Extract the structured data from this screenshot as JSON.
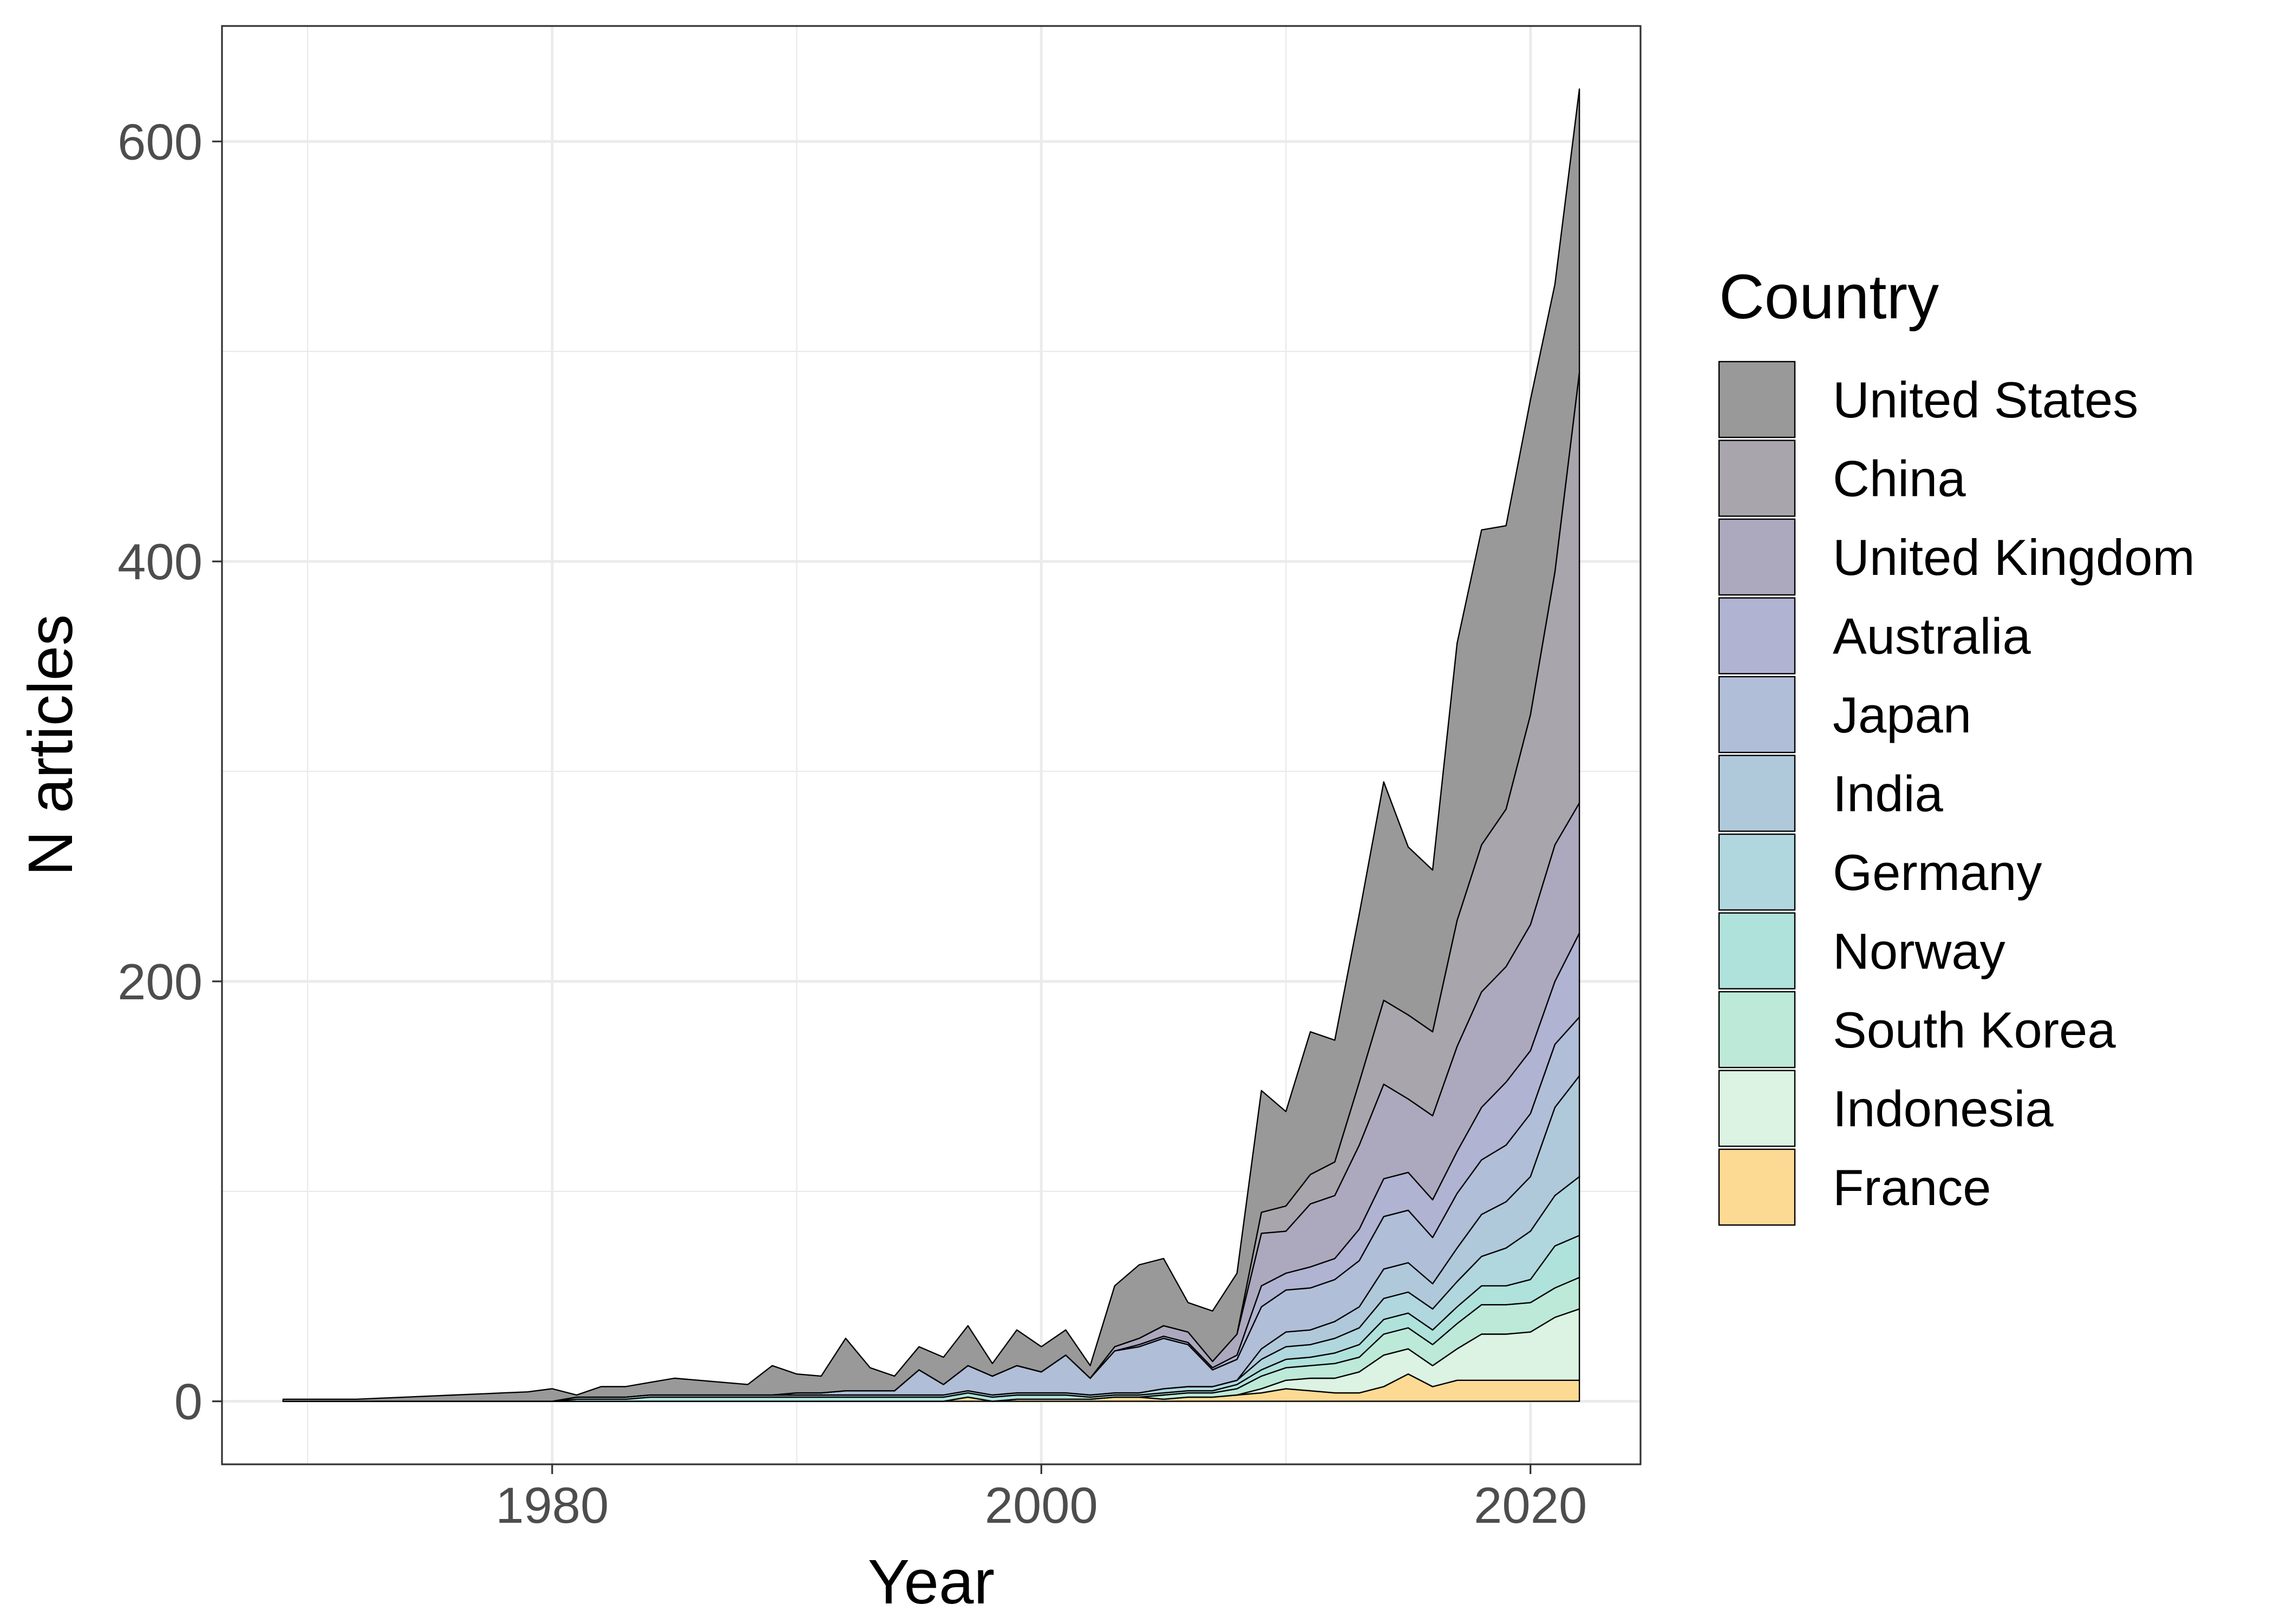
{
  "chart_data": {
    "type": "area",
    "stacked": true,
    "xlabel": "Year",
    "ylabel": "N articles",
    "xlim": [
      1966.5,
      2024.5
    ],
    "ylim": [
      -30,
      655
    ],
    "x_ticks": [
      1980,
      2000,
      2020
    ],
    "y_ticks": [
      0,
      200,
      400,
      600
    ],
    "grid": true,
    "legend": {
      "title": "Country",
      "placement": "right"
    },
    "x": [
      1969,
      1970,
      1971,
      1972,
      1973,
      1974,
      1975,
      1976,
      1977,
      1978,
      1979,
      1980,
      1981,
      1982,
      1983,
      1984,
      1985,
      1986,
      1987,
      1988,
      1989,
      1990,
      1991,
      1992,
      1993,
      1994,
      1995,
      1996,
      1997,
      1998,
      1999,
      2000,
      2001,
      2002,
      2003,
      2004,
      2005,
      2006,
      2007,
      2008,
      2009,
      2010,
      2011,
      2012,
      2013,
      2014,
      2015,
      2016,
      2017,
      2018,
      2019,
      2020,
      2021,
      2022
    ],
    "series": [
      {
        "name": "France",
        "color": "#FDDA94",
        "values": [
          0,
          0,
          0,
          0,
          0,
          0,
          0,
          0,
          0,
          0,
          0,
          0,
          0,
          0,
          0,
          0,
          0,
          0,
          0,
          0,
          0,
          0,
          0,
          0,
          0,
          0,
          0,
          0,
          2,
          0,
          1,
          1,
          1,
          1,
          2,
          2,
          1,
          2,
          2,
          3,
          4,
          6,
          5,
          4,
          4,
          7,
          13,
          7,
          10,
          10,
          10,
          10,
          10,
          10
        ]
      },
      {
        "name": "Indonesia",
        "color": "#DCF2E2",
        "values": [
          0,
          0,
          0,
          0,
          0,
          0,
          0,
          0,
          0,
          0,
          0,
          0,
          0,
          0,
          0,
          0,
          0,
          0,
          0,
          0,
          0,
          0,
          0,
          0,
          0,
          0,
          0,
          0,
          0,
          0,
          0,
          0,
          0,
          0,
          0,
          0,
          0,
          0,
          0,
          0,
          2,
          4,
          6,
          7,
          10,
          15,
          12,
          10,
          15,
          22,
          22,
          23,
          30,
          34
        ]
      },
      {
        "name": "South Korea",
        "color": "#BDE9D9",
        "values": [
          0,
          0,
          0,
          0,
          0,
          0,
          0,
          0,
          0,
          0,
          0,
          0,
          0,
          0,
          0,
          0,
          0,
          0,
          0,
          0,
          0,
          0,
          0,
          0,
          0,
          0,
          0,
          0,
          0,
          0,
          0,
          0,
          0,
          0,
          0,
          0,
          2,
          2,
          2,
          3,
          6,
          6,
          6,
          7,
          7,
          10,
          10,
          10,
          12,
          14,
          14,
          14,
          14,
          15
        ]
      },
      {
        "name": "Norway",
        "color": "#B0E2DC",
        "values": [
          0,
          0,
          0,
          0,
          0,
          0,
          0,
          0,
          0,
          0,
          0,
          0,
          1,
          1,
          1,
          2,
          2,
          2,
          2,
          2,
          2,
          2,
          2,
          2,
          2,
          2,
          2,
          2,
          2,
          2,
          2,
          2,
          2,
          1,
          1,
          1,
          1,
          1,
          1,
          2,
          3,
          4,
          4,
          5,
          6,
          7,
          7,
          7,
          8,
          9,
          9,
          11,
          20,
          20
        ]
      },
      {
        "name": "Germany",
        "color": "#B0D7DE",
        "values": [
          0,
          0,
          0,
          0,
          0,
          0,
          0,
          0,
          0,
          0,
          0,
          0,
          1,
          1,
          1,
          1,
          1,
          1,
          1,
          1,
          1,
          1,
          1,
          1,
          1,
          1,
          1,
          1,
          1,
          1,
          1,
          1,
          1,
          1,
          1,
          1,
          2,
          2,
          2,
          2,
          5,
          6,
          6,
          7,
          8,
          10,
          10,
          10,
          12,
          14,
          18,
          23,
          24,
          28
        ]
      },
      {
        "name": "India",
        "color": "#B0C9DA",
        "values": [
          0,
          0,
          0,
          0,
          0,
          0,
          0,
          0,
          0,
          0,
          0,
          0,
          0,
          0,
          0,
          0,
          0,
          0,
          0,
          0,
          0,
          0,
          0,
          0,
          0,
          0,
          0,
          0,
          0,
          0,
          0,
          0,
          0,
          0,
          0,
          0,
          0,
          0,
          0,
          0,
          5,
          7,
          7,
          8,
          10,
          14,
          14,
          12,
          16,
          20,
          22,
          26,
          42,
          48
        ]
      },
      {
        "name": "Japan",
        "color": "#B0BED8",
        "values": [
          0,
          0,
          0,
          0,
          0,
          0,
          0,
          0,
          0,
          0,
          0,
          0,
          0,
          0,
          0,
          0,
          0,
          0,
          0,
          0,
          0,
          1,
          1,
          2,
          2,
          2,
          12,
          5,
          12,
          9,
          13,
          10,
          18,
          8,
          20,
          22,
          24,
          20,
          8,
          10,
          20,
          20,
          20,
          20,
          22,
          25,
          25,
          22,
          26,
          26,
          27,
          30,
          30,
          28
        ]
      },
      {
        "name": "Australia",
        "color": "#B1B3D2",
        "values": [
          0,
          0,
          0,
          0,
          0,
          0,
          0,
          0,
          0,
          0,
          0,
          0,
          0,
          0,
          0,
          0,
          0,
          0,
          0,
          0,
          0,
          0,
          0,
          0,
          0,
          0,
          0,
          0,
          0,
          0,
          0,
          0,
          0,
          0,
          0,
          1,
          1,
          1,
          1,
          2,
          10,
          8,
          10,
          10,
          15,
          18,
          18,
          18,
          20,
          25,
          30,
          30,
          30,
          40
        ]
      },
      {
        "name": "United Kingdom",
        "color": "#ACA9BE",
        "values": [
          0,
          0,
          0,
          0,
          0,
          0,
          0,
          0,
          0,
          0,
          0,
          0,
          0,
          0,
          0,
          0,
          0,
          0,
          0,
          0,
          0,
          0,
          0,
          0,
          0,
          0,
          0,
          0,
          0,
          0,
          0,
          0,
          0,
          0,
          2,
          3,
          5,
          5,
          3,
          10,
          25,
          20,
          30,
          30,
          40,
          45,
          35,
          40,
          50,
          55,
          55,
          60,
          65,
          62
        ]
      },
      {
        "name": "China",
        "color": "#A9A5AC",
        "values": [
          0,
          0,
          0,
          0,
          0,
          0,
          0,
          0,
          0,
          0,
          0,
          0,
          0,
          0,
          0,
          0,
          0,
          0,
          0,
          0,
          0,
          0,
          0,
          0,
          0,
          0,
          0,
          0,
          0,
          0,
          0,
          0,
          0,
          0,
          0,
          0,
          0,
          0,
          0,
          0,
          10,
          12,
          14,
          16,
          30,
          40,
          40,
          40,
          60,
          70,
          75,
          100,
          130,
          205
        ]
      },
      {
        "name": "United States",
        "color": "#999999",
        "values": [
          1,
          1,
          1,
          1,
          1.5,
          2,
          2.5,
          3,
          3.5,
          4,
          4.5,
          6,
          1,
          5,
          5,
          6,
          8,
          7,
          6,
          5,
          14,
          9,
          8,
          25,
          11,
          7,
          11,
          13,
          19,
          6,
          17,
          12,
          12,
          6,
          29,
          35,
          32,
          14,
          24,
          29,
          58,
          45,
          68,
          58,
          80,
          104,
          80,
          77,
          132,
          150,
          135,
          150,
          137,
          135
        ]
      }
    ]
  }
}
